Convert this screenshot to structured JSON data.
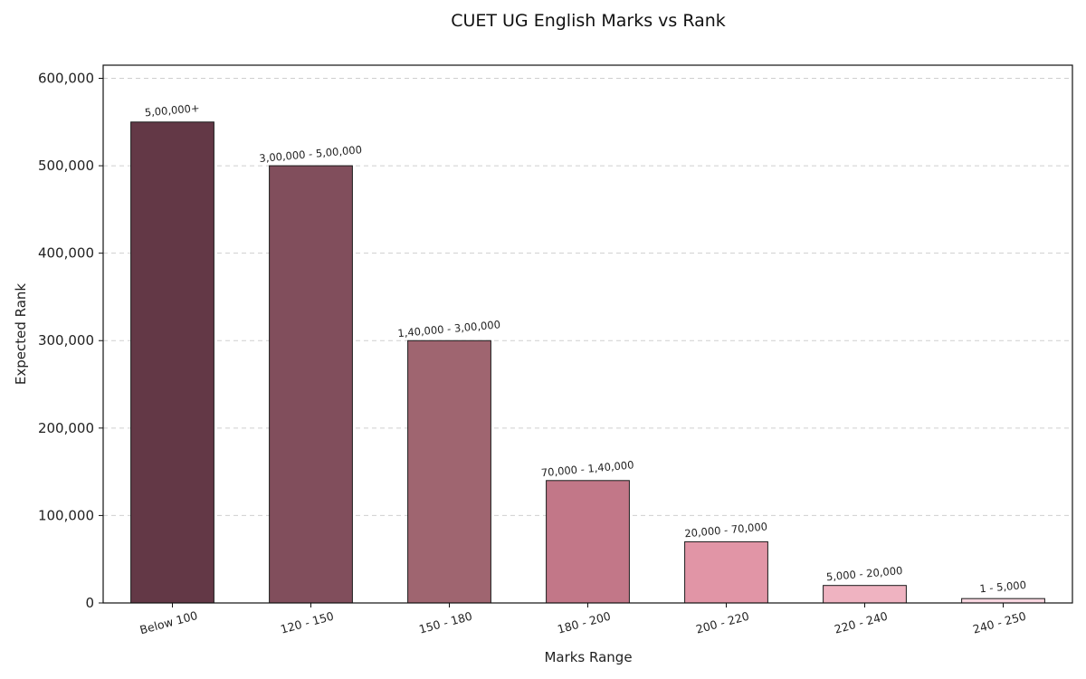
{
  "chart_data": {
    "type": "bar",
    "title": "CUET UG English Marks vs Rank",
    "xlabel": "Marks Range",
    "ylabel": "Expected Rank",
    "categories": [
      "Below 100",
      "120 - 150",
      "150 - 180",
      "180 - 200",
      "200 - 220",
      "220 - 240",
      "240 - 250"
    ],
    "values": [
      550000,
      500000,
      300000,
      140000,
      70000,
      20000,
      5000
    ],
    "data_labels": [
      "5,00,000+",
      "3,00,000 - 5,00,000",
      "1,40,000 - 3,00,000",
      "70,000 - 1,40,000",
      "20,000 - 70,000",
      "5,000 - 20,000",
      "1 - 5,000"
    ],
    "colors": [
      "#633846",
      "#814e5c",
      "#9f6570",
      "#c27788",
      "#e195a6",
      "#efb3c1",
      "#f8d6e0"
    ],
    "ylim": [
      0,
      615000
    ],
    "yticks": [
      0,
      100000,
      200000,
      300000,
      400000,
      500000,
      600000
    ],
    "ytick_labels": [
      "0",
      "100,000",
      "200,000",
      "300,000",
      "400,000",
      "500,000",
      "600,000"
    ],
    "grid": "horizontal dashed",
    "legend": "none"
  }
}
